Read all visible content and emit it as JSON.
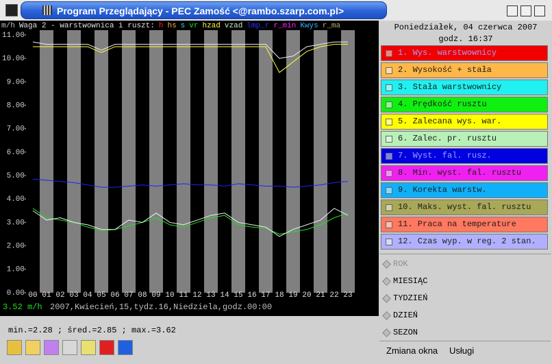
{
  "window": {
    "title": "Program Przeglądający - PEC Zamość <@rambo.szarp.com.pl>"
  },
  "chart_data": {
    "type": "line",
    "unit": "m/h",
    "title": "Waga 2 - warstwownica i ruszt:",
    "header_params": [
      {
        "text": "h",
        "color": "#ff2020"
      },
      {
        "text": "hs",
        "color": "#ffb050"
      },
      {
        "text": "s",
        "color": "#20e0e0"
      },
      {
        "text": "vr",
        "color": "#20e020"
      },
      {
        "text": "hzad",
        "color": "#ffff40"
      },
      {
        "text": "vzad",
        "color": "#c0f0c0"
      },
      {
        "text": "lmp_r",
        "color": "#3030ff"
      },
      {
        "text": "r_min",
        "color": "#ff20ff"
      },
      {
        "text": "Kwys",
        "color": "#30b0ff"
      },
      {
        "text": "r_ma",
        "color": "#b0b060"
      }
    ],
    "categories": [
      "00",
      "01",
      "02",
      "03",
      "04",
      "05",
      "06",
      "07",
      "08",
      "09",
      "10",
      "11",
      "12",
      "13",
      "14",
      "15",
      "16",
      "17",
      "18",
      "19",
      "20",
      "21",
      "22",
      "23"
    ],
    "ylim": [
      0,
      11
    ],
    "yticks": [
      {
        "value": 0,
        "label": "0.00"
      },
      {
        "value": 1,
        "label": "1.00"
      },
      {
        "value": 2,
        "label": "2.00"
      },
      {
        "value": 3,
        "label": "3.00"
      },
      {
        "value": 4,
        "label": "4.00"
      },
      {
        "value": 5,
        "label": "5.00"
      },
      {
        "value": 6,
        "label": "6.00"
      },
      {
        "value": 7,
        "label": "7.00"
      },
      {
        "value": 8,
        "label": "8.00"
      },
      {
        "value": 9,
        "label": "9.00"
      },
      {
        "value": 10,
        "label": "10.00"
      },
      {
        "value": 11,
        "label": "11.00"
      }
    ],
    "series": [
      {
        "color": "#f0f0f0",
        "values": [
          10.7,
          10.6,
          10.6,
          10.6,
          10.6,
          10.35,
          10.6,
          10.6,
          10.6,
          10.6,
          10.6,
          10.6,
          10.6,
          10.6,
          10.6,
          10.6,
          10.6,
          10.6,
          10.0,
          10.1,
          10.5,
          10.6,
          10.7,
          10.7
        ]
      },
      {
        "color": "#ffff40",
        "values": [
          10.5,
          10.5,
          10.5,
          10.5,
          10.5,
          10.25,
          10.5,
          10.5,
          10.5,
          10.5,
          10.5,
          10.5,
          10.5,
          10.5,
          10.5,
          10.5,
          10.5,
          10.5,
          9.4,
          9.85,
          10.3,
          10.5,
          10.6,
          10.6
        ]
      },
      {
        "color": "#2020ff",
        "values": [
          4.85,
          4.8,
          4.75,
          4.7,
          4.6,
          4.5,
          4.5,
          4.55,
          4.6,
          4.55,
          4.6,
          4.65,
          4.6,
          4.6,
          4.55,
          4.65,
          4.6,
          4.55,
          4.55,
          4.5,
          4.55,
          4.6,
          4.7,
          4.75
        ]
      },
      {
        "color": "#20e020",
        "values": [
          3.6,
          3.2,
          3.1,
          3.0,
          2.8,
          2.65,
          2.7,
          2.85,
          3.0,
          3.2,
          2.9,
          2.8,
          3.0,
          3.2,
          3.3,
          2.9,
          2.8,
          2.75,
          2.5,
          2.6,
          2.7,
          2.9,
          3.2,
          3.4
        ]
      },
      {
        "color": "#f0f0f0",
        "values": [
          3.5,
          3.1,
          3.2,
          3.0,
          2.9,
          2.7,
          2.7,
          3.1,
          3.0,
          3.4,
          3.0,
          2.9,
          3.1,
          3.3,
          3.4,
          3.0,
          2.9,
          2.8,
          2.4,
          2.7,
          2.9,
          3.1,
          3.6,
          3.3
        ]
      }
    ]
  },
  "status": {
    "current_value": "3.52 m/h",
    "date": "2007,Kwiecień,15,tydz.16,Niedziela,godz.00:00",
    "stats": "min.=2.28 ; śred.=2.85 ; max.=3.62"
  },
  "panel": {
    "date": "Poniedziałek, 04 czerwca 2007",
    "time": "godz. 16:37",
    "params": [
      {
        "label": "1. Wys. warstwownicy",
        "color": "#f00000"
      },
      {
        "label": "2. Wysokość + stała",
        "color": "#ffb848"
      },
      {
        "label": "3. Stała warstwownicy",
        "color": "#20f0f0"
      },
      {
        "label": "4. Prędkość rusztu",
        "color": "#10f010"
      },
      {
        "label": "5. Zalecana wys. war.",
        "color": "#ffff00"
      },
      {
        "label": "6. Zalec. pr. rusztu",
        "color": "#b8f0b8"
      },
      {
        "label": "7. Wyst. fal. rusz.",
        "color": "#0000e0"
      },
      {
        "label": "8. Min. wyst. fal. rusztu",
        "color": "#f020f0"
      },
      {
        "label": "9. Korekta warstw.",
        "color": "#10b0f8"
      },
      {
        "label": "10. Maks. wyst. fal. rusztu",
        "color": "#a8a858"
      },
      {
        "label": "11. Praca na temperature",
        "color": "#ff7860"
      },
      {
        "label": "12. Czas wyp. w reg. 2 stan.",
        "color": "#b0b0ff"
      }
    ],
    "periods": [
      "ROK",
      "MIESIĄC",
      "TYDZIEŃ",
      "DZIEŃ",
      "SEZON"
    ]
  },
  "menu": [
    "Zmiana okna",
    "Usługi"
  ]
}
